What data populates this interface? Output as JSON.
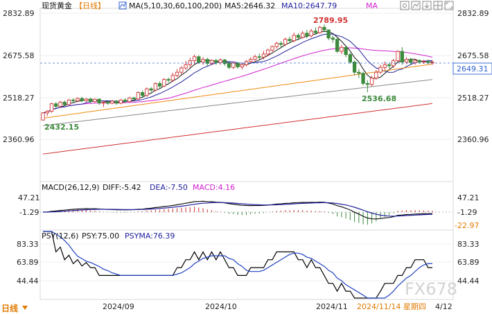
{
  "header": {
    "symbol": "现货黄金",
    "period": "【日线】",
    "ma_label": "MA(5,10,30,60,100,200)",
    "ma5": "MA5:2646.32",
    "ma10": "MA10:2647.79",
    "ma_extra": "MA"
  },
  "colors": {
    "up": "#d03030",
    "down": "#3c8a3c",
    "ma5": "#111111",
    "ma10": "#2020a0",
    "ma30": "#d020d0",
    "ma60": "#f08a10",
    "ma100": "#888888",
    "ma200": "#d03030",
    "dashed": "#3a6fd8",
    "psy": "#000000",
    "psyma": "#2040c0"
  },
  "price_panel": {
    "y_ticks": [
      "2832.89",
      "2675.58",
      "2518.27",
      "2360.96"
    ],
    "last_price": "2649.31",
    "high_annotation": "2789.95",
    "low_annotation": "2536.68",
    "start_low_annotation": "2432.15"
  },
  "macd_panel": {
    "title": "MACD(26,12,9)",
    "diff": "DIFF:-5.42",
    "dea": "DEA:-7.50",
    "macd": "MACD:4.16",
    "y_ticks_left": [
      "47.21",
      "-1.29"
    ],
    "y_ticks_right": [
      "47.21",
      "-1.29",
      "-22.97"
    ]
  },
  "psy_panel": {
    "title": "PSY(12,6)",
    "psy": "PSY:75.00",
    "psyma": "PSYMA:76.39",
    "y_ticks": [
      "83.33",
      "63.89",
      "44.44"
    ]
  },
  "x_axis": {
    "ticks": [
      "2024/09",
      "2024/10",
      "2024/11"
    ],
    "current_date": "2024/11/14 星期四",
    "right_date": "4/12"
  },
  "toolbar": {
    "period_button": "日线",
    "icons": [
      "settings-icon",
      "trend-icon",
      "download-icon",
      "grid-icon",
      "fullscreen-icon"
    ]
  },
  "watermark": "FX678",
  "chart_data": {
    "type": "candlestick",
    "ylim": [
      2290,
      2850
    ],
    "candles": [
      [
        2433,
        2460,
        2432,
        2462
      ],
      [
        2460,
        2466,
        2448,
        2470
      ],
      [
        2466,
        2494,
        2460,
        2498
      ],
      [
        2494,
        2484,
        2478,
        2500
      ],
      [
        2484,
        2500,
        2480,
        2505
      ],
      [
        2500,
        2491,
        2486,
        2506
      ],
      [
        2491,
        2508,
        2488,
        2512
      ],
      [
        2508,
        2505,
        2498,
        2514
      ],
      [
        2505,
        2514,
        2500,
        2518
      ],
      [
        2514,
        2506,
        2500,
        2520
      ],
      [
        2506,
        2512,
        2500,
        2515
      ],
      [
        2512,
        2502,
        2496,
        2516
      ],
      [
        2502,
        2511,
        2498,
        2514
      ],
      [
        2511,
        2497,
        2490,
        2514
      ],
      [
        2497,
        2500,
        2482,
        2504
      ],
      [
        2500,
        2496,
        2490,
        2506
      ],
      [
        2496,
        2504,
        2492,
        2508
      ],
      [
        2504,
        2496,
        2490,
        2508
      ],
      [
        2496,
        2508,
        2492,
        2512
      ],
      [
        2508,
        2502,
        2498,
        2514
      ],
      [
        2502,
        2516,
        2498,
        2520
      ],
      [
        2516,
        2512,
        2506,
        2520
      ],
      [
        2512,
        2536,
        2508,
        2540
      ],
      [
        2536,
        2525,
        2518,
        2544
      ],
      [
        2525,
        2550,
        2520,
        2555
      ],
      [
        2550,
        2545,
        2538,
        2556
      ],
      [
        2545,
        2570,
        2540,
        2574
      ],
      [
        2570,
        2560,
        2552,
        2578
      ],
      [
        2560,
        2585,
        2556,
        2590
      ],
      [
        2585,
        2582,
        2574,
        2592
      ],
      [
        2582,
        2600,
        2576,
        2610
      ],
      [
        2600,
        2612,
        2594,
        2624
      ],
      [
        2612,
        2628,
        2604,
        2634
      ],
      [
        2628,
        2640,
        2620,
        2654
      ],
      [
        2640,
        2655,
        2630,
        2666
      ],
      [
        2655,
        2670,
        2640,
        2678
      ],
      [
        2670,
        2650,
        2644,
        2676
      ],
      [
        2650,
        2660,
        2640,
        2668
      ],
      [
        2660,
        2645,
        2635,
        2666
      ],
      [
        2645,
        2656,
        2638,
        2660
      ],
      [
        2656,
        2648,
        2640,
        2662
      ],
      [
        2648,
        2658,
        2640,
        2664
      ],
      [
        2658,
        2644,
        2636,
        2662
      ],
      [
        2644,
        2630,
        2624,
        2650
      ],
      [
        2630,
        2646,
        2624,
        2652
      ],
      [
        2646,
        2632,
        2626,
        2650
      ],
      [
        2632,
        2640,
        2622,
        2646
      ],
      [
        2640,
        2652,
        2634,
        2658
      ],
      [
        2652,
        2660,
        2646,
        2668
      ],
      [
        2660,
        2670,
        2654,
        2678
      ],
      [
        2670,
        2668,
        2660,
        2682
      ],
      [
        2668,
        2680,
        2660,
        2692
      ],
      [
        2680,
        2695,
        2672,
        2700
      ],
      [
        2695,
        2708,
        2688,
        2712
      ],
      [
        2708,
        2720,
        2700,
        2726
      ],
      [
        2720,
        2716,
        2706,
        2728
      ],
      [
        2716,
        2735,
        2710,
        2742
      ],
      [
        2735,
        2730,
        2720,
        2746
      ],
      [
        2730,
        2750,
        2724,
        2760
      ],
      [
        2750,
        2742,
        2732,
        2758
      ],
      [
        2742,
        2758,
        2738,
        2766
      ],
      [
        2758,
        2748,
        2740,
        2770
      ],
      [
        2748,
        2766,
        2742,
        2774
      ],
      [
        2766,
        2760,
        2752,
        2780
      ],
      [
        2760,
        2780,
        2756,
        2786
      ],
      [
        2780,
        2770,
        2762,
        2790
      ],
      [
        2770,
        2740,
        2732,
        2772
      ],
      [
        2740,
        2735,
        2722,
        2750
      ],
      [
        2735,
        2690,
        2684,
        2740
      ],
      [
        2690,
        2705,
        2680,
        2714
      ],
      [
        2705,
        2678,
        2668,
        2712
      ],
      [
        2678,
        2650,
        2644,
        2686
      ],
      [
        2650,
        2612,
        2600,
        2656
      ],
      [
        2612,
        2608,
        2590,
        2624
      ],
      [
        2608,
        2570,
        2562,
        2614
      ],
      [
        2570,
        2566,
        2537,
        2582
      ],
      [
        2566,
        2590,
        2560,
        2598
      ],
      [
        2590,
        2612,
        2584,
        2620
      ],
      [
        2612,
        2630,
        2606,
        2640
      ],
      [
        2630,
        2640,
        2620,
        2652
      ],
      [
        2640,
        2636,
        2626,
        2648
      ],
      [
        2636,
        2655,
        2628,
        2662
      ],
      [
        2655,
        2690,
        2650,
        2694
      ],
      [
        2690,
        2650,
        2640,
        2706
      ],
      [
        2650,
        2660,
        2642,
        2668
      ],
      [
        2660,
        2648,
        2640,
        2666
      ],
      [
        2648,
        2656,
        2640,
        2662
      ],
      [
        2656,
        2650,
        2644,
        2660
      ],
      [
        2650,
        2652,
        2644,
        2658
      ],
      [
        2652,
        2648,
        2642,
        2660
      ],
      [
        2648,
        2649,
        2640,
        2656
      ]
    ]
  }
}
